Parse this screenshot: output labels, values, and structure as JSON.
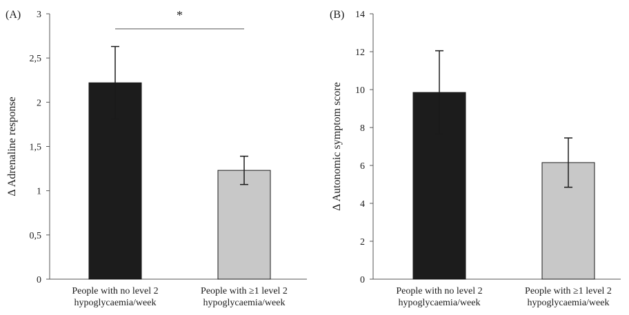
{
  "chart_data": [
    {
      "type": "bar",
      "panel_label": "(A)",
      "ylabel": "Δ Adrenaline response",
      "ylim": [
        0,
        3
      ],
      "y_ticks": [
        0,
        0.5,
        1,
        1.5,
        2,
        2.5,
        3
      ],
      "y_tick_labels": [
        "0",
        "0,5",
        "1",
        "1,5",
        "2",
        "2,5",
        "3"
      ],
      "categories": [
        [
          "People with no level 2",
          "hypoglycaemia/week"
        ],
        [
          "People with ≥1 level 2",
          "hypoglycaemia/week"
        ]
      ],
      "values": [
        2.22,
        1.23
      ],
      "error": [
        0.41,
        0.16
      ],
      "colors": [
        "#1c1c1c",
        "#c8c8c8"
      ],
      "significance": {
        "text": "*",
        "between": [
          0,
          1
        ],
        "level": 2.83
      }
    },
    {
      "type": "bar",
      "panel_label": "(B)",
      "ylabel": "Δ Autonomic symptom score",
      "ylim": [
        0,
        14
      ],
      "y_ticks": [
        0,
        2,
        4,
        6,
        8,
        10,
        12,
        14
      ],
      "y_tick_labels": [
        "0",
        "2",
        "4",
        "6",
        "8",
        "10",
        "12",
        "14"
      ],
      "categories": [
        [
          "People with no level 2",
          "hypoglycaemia/week"
        ],
        [
          "People with ≥1 level 2",
          "hypoglycaemia/week"
        ]
      ],
      "values": [
        9.85,
        6.15
      ],
      "error": [
        2.2,
        1.3
      ],
      "colors": [
        "#1c1c1c",
        "#c8c8c8"
      ]
    }
  ]
}
